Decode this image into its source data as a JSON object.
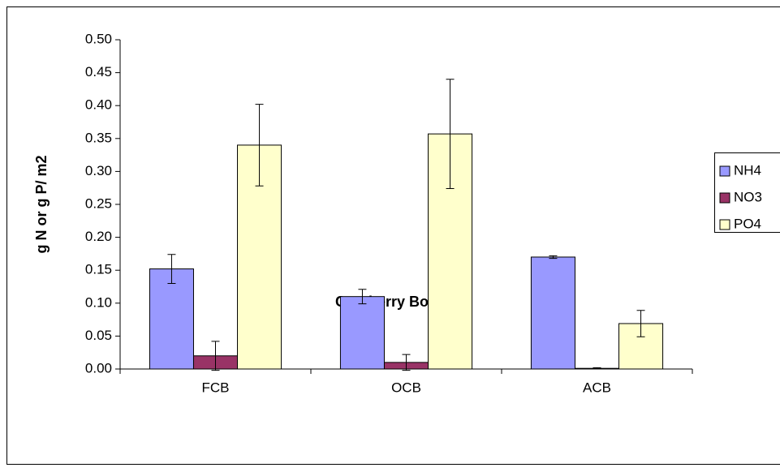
{
  "chart_data": {
    "type": "bar",
    "categories": [
      "FCB",
      "OCB",
      "ACB"
    ],
    "xlabel": "Cranberry Bogs",
    "ylabel": "g N or g P/ m2",
    "series": [
      {
        "name": "NH4",
        "color": "#9999ff",
        "values": [
          0.152,
          0.11,
          0.17
        ],
        "errors": [
          0.022,
          0.011,
          0.002
        ]
      },
      {
        "name": "NO3",
        "color": "#993366",
        "values": [
          0.02,
          0.01,
          0.001
        ],
        "errors": [
          0.022,
          0.012,
          0.001
        ]
      },
      {
        "name": "PO4",
        "color": "#ffffcc",
        "values": [
          0.34,
          0.357,
          0.069
        ],
        "errors": [
          0.062,
          0.083,
          0.02
        ]
      }
    ],
    "ylim": [
      0,
      0.5
    ],
    "yticks": [
      {
        "value": 0,
        "label": "0.00"
      },
      {
        "value": 0.05,
        "label": "0.05"
      },
      {
        "value": 0.1,
        "label": "0.10"
      },
      {
        "value": 0.15,
        "label": "0.15"
      },
      {
        "value": 0.2,
        "label": "0.20"
      },
      {
        "value": 0.25,
        "label": "0.25"
      },
      {
        "value": 0.3,
        "label": "0.30"
      },
      {
        "value": 0.35,
        "label": "0.35"
      },
      {
        "value": 0.4,
        "label": "0.40"
      },
      {
        "value": 0.45,
        "label": "0.45"
      },
      {
        "value": 0.5,
        "label": "0.50"
      }
    ],
    "legend": "right"
  }
}
